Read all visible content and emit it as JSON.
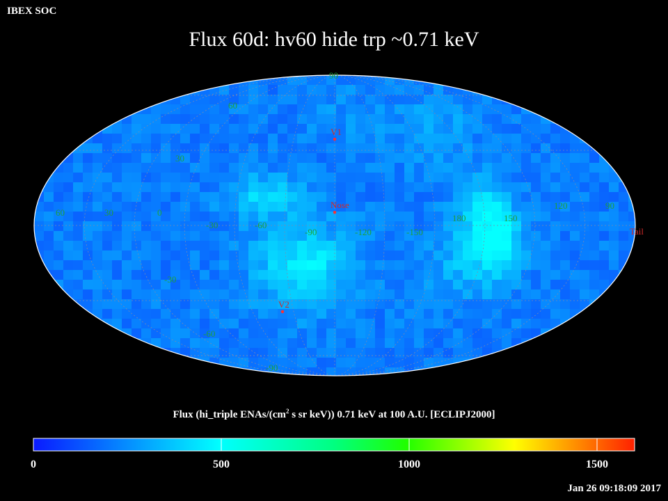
{
  "header": {
    "source": "IBEX SOC"
  },
  "title": "Flux   60d: hv60 hide trp ~0.71 keV",
  "grid_labels": {
    "lat": [
      "60",
      "30",
      "-30",
      "-60",
      "-90"
    ],
    "lon": [
      "60",
      "30",
      "0",
      "-30",
      "-60",
      "-90",
      "-120",
      "-150",
      "180",
      "150",
      "120",
      "90"
    ],
    "top": "90"
  },
  "markers": [
    {
      "name": "V1",
      "lon": -105,
      "lat": 35
    },
    {
      "name": "Nose",
      "lon": -105,
      "lat": 5
    },
    {
      "name": "V2",
      "lon": -75,
      "lat": -35
    },
    {
      "name": "Tail",
      "lon": 75,
      "lat": -5
    }
  ],
  "colorbar": {
    "title_parts": [
      "Flux (hi_triple ENAs/(cm",
      "2",
      " s sr keV))  0.71 keV at 100 A.U. [ECLIPJ2000]"
    ],
    "ticks": [
      "0",
      "500",
      "1000",
      "1500"
    ],
    "min": 0,
    "max": 1600
  },
  "footer": {
    "timestamp": "Jan 26 09:18:09 2017"
  },
  "colors": {
    "background": "#000000",
    "low": "#0a36ff",
    "mid": "#00ffff",
    "high": "#ff2a00"
  }
}
